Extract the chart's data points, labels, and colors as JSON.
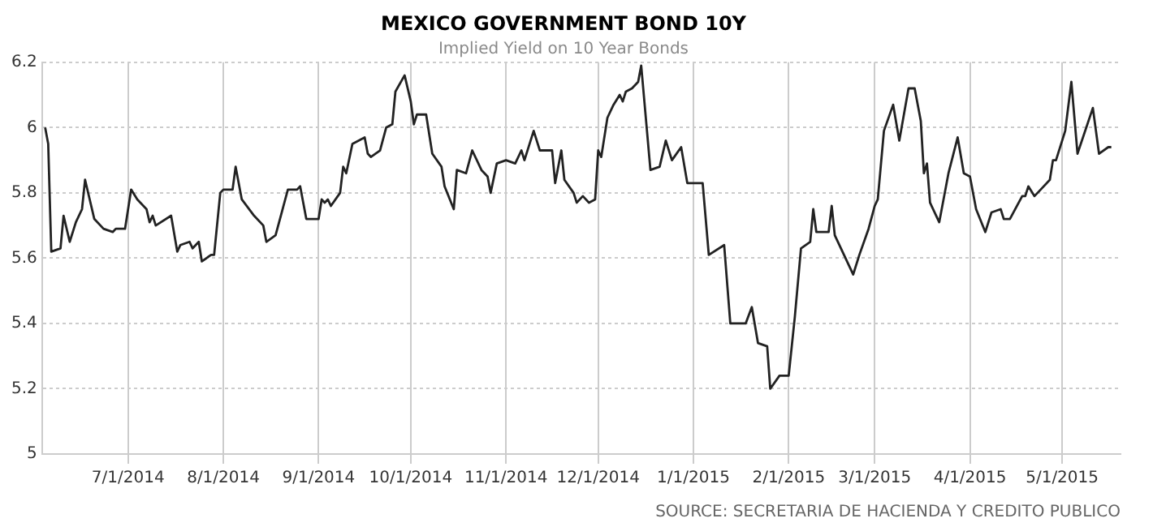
{
  "chart_data": {
    "type": "line",
    "title": "MEXICO GOVERNMENT BOND 10Y",
    "subtitle": "Implied Yield on 10 Year Bonds",
    "annotations": [
      "SOURCE: SECRETARIA DE HACIENDA Y CREDITO PUBLICO"
    ],
    "x": [
      "2014-06-04",
      "2014-06-05",
      "2014-06-06",
      "2014-06-09",
      "2014-06-10",
      "2014-06-12",
      "2014-06-14",
      "2014-06-16",
      "2014-06-17",
      "2014-06-20",
      "2014-06-23",
      "2014-06-26",
      "2014-06-27",
      "2014-06-30",
      "2014-07-02",
      "2014-07-04",
      "2014-07-07",
      "2014-07-08",
      "2014-07-09",
      "2014-07-10",
      "2014-07-15",
      "2014-07-17",
      "2014-07-18",
      "2014-07-21",
      "2014-07-22",
      "2014-07-24",
      "2014-07-25",
      "2014-07-28",
      "2014-07-29",
      "2014-07-31",
      "2014-08-01",
      "2014-08-04",
      "2014-08-05",
      "2014-08-07",
      "2014-08-11",
      "2014-08-14",
      "2014-08-15",
      "2014-08-18",
      "2014-08-20",
      "2014-08-22",
      "2014-08-25",
      "2014-08-26",
      "2014-08-28",
      "2014-09-01",
      "2014-09-02",
      "2014-09-03",
      "2014-09-04",
      "2014-09-05",
      "2014-09-08",
      "2014-09-09",
      "2014-09-10",
      "2014-09-12",
      "2014-09-16",
      "2014-09-17",
      "2014-09-18",
      "2014-09-21",
      "2014-09-23",
      "2014-09-25",
      "2014-09-26",
      "2014-09-29",
      "2014-10-01",
      "2014-10-02",
      "2014-10-03",
      "2014-10-06",
      "2014-10-08",
      "2014-10-11",
      "2014-10-12",
      "2014-10-15",
      "2014-10-16",
      "2014-10-19",
      "2014-10-21",
      "2014-10-24",
      "2014-10-26",
      "2014-10-27",
      "2014-10-29",
      "2014-11-01",
      "2014-11-04",
      "2014-11-06",
      "2014-11-07",
      "2014-11-10",
      "2014-11-12",
      "2014-11-16",
      "2014-11-17",
      "2014-11-19",
      "2014-11-20",
      "2014-11-23",
      "2014-11-24",
      "2014-11-26",
      "2014-11-28",
      "2014-11-30",
      "2014-12-01",
      "2014-12-02",
      "2014-12-04",
      "2014-12-06",
      "2014-12-08",
      "2014-12-09",
      "2014-12-10",
      "2014-12-12",
      "2014-12-14",
      "2014-12-15",
      "2014-12-18",
      "2014-12-21",
      "2014-12-23",
      "2014-12-25",
      "2014-12-28",
      "2014-12-30",
      "2015-01-04",
      "2015-01-06",
      "2015-01-11",
      "2015-01-13",
      "2015-01-18",
      "2015-01-20",
      "2015-01-22",
      "2015-01-25",
      "2015-01-26",
      "2015-01-29",
      "2015-02-01",
      "2015-02-02",
      "2015-02-03",
      "2015-02-05",
      "2015-02-08",
      "2015-02-09",
      "2015-02-10",
      "2015-02-14",
      "2015-02-15",
      "2015-02-16",
      "2015-02-19",
      "2015-02-22",
      "2015-02-24",
      "2015-02-27",
      "2015-03-01",
      "2015-03-02",
      "2015-03-04",
      "2015-03-07",
      "2015-03-09",
      "2015-03-12",
      "2015-03-14",
      "2015-03-16",
      "2015-03-17",
      "2015-03-18",
      "2015-03-19",
      "2015-03-22",
      "2015-03-25",
      "2015-03-28",
      "2015-03-30",
      "2015-04-01",
      "2015-04-03",
      "2015-04-06",
      "2015-04-08",
      "2015-04-11",
      "2015-04-12",
      "2015-04-14",
      "2015-04-18",
      "2015-04-19",
      "2015-04-20",
      "2015-04-22",
      "2015-04-24",
      "2015-04-27",
      "2015-04-28",
      "2015-04-29",
      "2015-05-02",
      "2015-05-04",
      "2015-05-06",
      "2015-05-11",
      "2015-05-13",
      "2015-05-16",
      "2015-05-17"
    ],
    "series": [
      {
        "color": "#222222",
        "values": [
          6.0,
          5.95,
          5.62,
          5.63,
          5.73,
          5.65,
          5.71,
          5.75,
          5.84,
          5.72,
          5.69,
          5.68,
          5.69,
          5.69,
          5.81,
          5.78,
          5.75,
          5.71,
          5.73,
          5.7,
          5.73,
          5.62,
          5.64,
          5.65,
          5.63,
          5.65,
          5.59,
          5.61,
          5.61,
          5.8,
          5.81,
          5.81,
          5.88,
          5.78,
          5.73,
          5.7,
          5.65,
          5.67,
          5.74,
          5.81,
          5.81,
          5.82,
          5.72,
          5.72,
          5.78,
          5.77,
          5.78,
          5.76,
          5.8,
          5.88,
          5.86,
          5.95,
          5.97,
          5.92,
          5.91,
          5.93,
          6.0,
          6.01,
          6.11,
          6.16,
          6.08,
          6.01,
          6.04,
          6.04,
          5.92,
          5.88,
          5.82,
          5.75,
          5.87,
          5.86,
          5.93,
          5.87,
          5.85,
          5.8,
          5.89,
          5.9,
          5.89,
          5.93,
          5.9,
          5.99,
          5.93,
          5.93,
          5.83,
          5.93,
          5.84,
          5.8,
          5.77,
          5.79,
          5.77,
          5.78,
          5.93,
          5.91,
          6.03,
          6.07,
          6.1,
          6.08,
          6.11,
          6.12,
          6.14,
          6.19,
          5.87,
          5.88,
          5.96,
          5.9,
          5.94,
          5.83,
          5.83,
          5.61,
          5.64,
          5.4,
          5.4,
          5.45,
          5.34,
          5.33,
          5.2,
          5.24,
          5.24,
          5.33,
          5.42,
          5.63,
          5.65,
          5.75,
          5.68,
          5.68,
          5.76,
          5.67,
          5.61,
          5.55,
          5.61,
          5.69,
          5.76,
          5.78,
          5.99,
          6.07,
          5.96,
          6.12,
          6.12,
          6.02,
          5.86,
          5.89,
          5.77,
          5.71,
          5.86,
          5.97,
          5.86,
          5.85,
          5.75,
          5.68,
          5.74,
          5.75,
          5.72,
          5.72,
          5.79,
          5.79,
          5.82,
          5.79,
          5.81,
          5.84,
          5.9,
          5.9,
          5.99,
          6.14,
          5.92,
          6.06,
          5.92,
          5.94,
          5.94
        ]
      }
    ],
    "xlim": [
      "2014-06-03",
      "2015-05-20"
    ],
    "xticks": [
      {
        "value": "2014-07-01",
        "label": "7/1/2014"
      },
      {
        "value": "2014-08-01",
        "label": "8/1/2014"
      },
      {
        "value": "2014-09-01",
        "label": "9/1/2014"
      },
      {
        "value": "2014-10-01",
        "label": "10/1/2014"
      },
      {
        "value": "2014-11-01",
        "label": "11/1/2014"
      },
      {
        "value": "2014-12-01",
        "label": "12/1/2014"
      },
      {
        "value": "2015-01-01",
        "label": "1/1/2015"
      },
      {
        "value": "2015-02-01",
        "label": "2/1/2015"
      },
      {
        "value": "2015-03-01",
        "label": "3/1/2015"
      },
      {
        "value": "2015-04-01",
        "label": "4/1/2015"
      },
      {
        "value": "2015-05-01",
        "label": "5/1/2015"
      }
    ],
    "ylim": [
      5,
      6.2
    ],
    "yticks": [
      5,
      5.2,
      5.4,
      5.6,
      5.8,
      6,
      6.2
    ],
    "grid": true,
    "legend": false,
    "marker": "none",
    "line_style": "solid"
  }
}
